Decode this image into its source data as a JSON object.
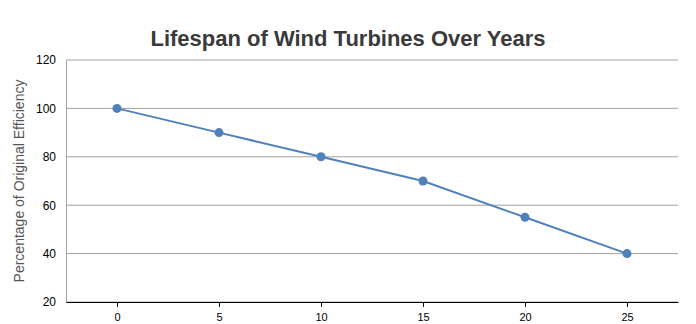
{
  "chart_data": {
    "type": "line",
    "title": "Lifespan of Wind Turbines Over Years",
    "ylabel": "Percentage of Original Efficiency",
    "x": [
      0,
      5,
      10,
      15,
      20,
      25
    ],
    "values": [
      100,
      90,
      80,
      70,
      55,
      40
    ],
    "color": "#4f81bc",
    "marker": "circle",
    "xlim": [
      -2.5,
      27.5
    ],
    "xticks": [
      0,
      5,
      10,
      15,
      20,
      25
    ],
    "ylim": [
      20,
      120
    ],
    "yticks": [
      20,
      40,
      60,
      80,
      100,
      120
    ],
    "grid": true
  }
}
